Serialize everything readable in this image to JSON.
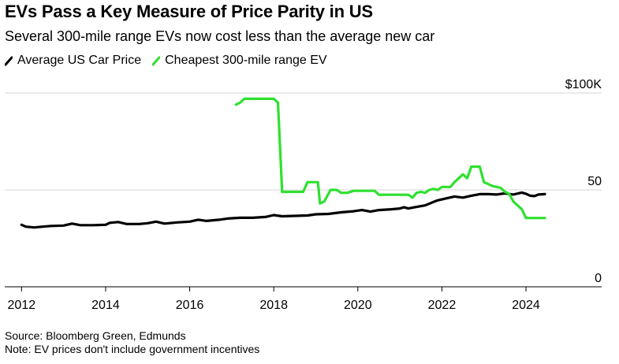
{
  "title": "EVs Pass a Key Measure of Price Parity in US",
  "subtitle": "Several 300-mile range EVs now cost less than the average new car",
  "legend": [
    {
      "label": "Average US Car Price",
      "color": "#000000"
    },
    {
      "label": "Cheapest 300-mile range EV",
      "color": "#2fe02f"
    }
  ],
  "source": "Source: Bloomberg Green, Edmunds",
  "note": "Note: EV prices don't include government incentives",
  "chart_data": {
    "type": "line",
    "title": "EVs Pass a Key Measure of Price Parity in US",
    "xlabel": "",
    "ylabel": "",
    "xlim": [
      2011.6,
      2025.8
    ],
    "ylim": [
      0,
      100
    ],
    "x_ticks": [
      2012,
      2014,
      2016,
      2018,
      2020,
      2022,
      2024
    ],
    "x_tick_labels": [
      "2012",
      "2014",
      "2016",
      "2018",
      "2020",
      "2022",
      "2024"
    ],
    "y_ticks": [
      0,
      50,
      100
    ],
    "y_tick_labels": [
      "0",
      "50",
      "$100K"
    ],
    "grid": "horizontal",
    "legend_position": "top-left",
    "series": [
      {
        "name": "Average US Car Price",
        "color": "#000000",
        "points": [
          [
            2012.0,
            32.0
          ],
          [
            2012.1,
            31.0
          ],
          [
            2012.3,
            30.6
          ],
          [
            2012.5,
            31.0
          ],
          [
            2012.7,
            31.4
          ],
          [
            2013.0,
            31.6
          ],
          [
            2013.2,
            32.6
          ],
          [
            2013.4,
            31.8
          ],
          [
            2013.7,
            31.8
          ],
          [
            2014.0,
            32.0
          ],
          [
            2014.1,
            33.0
          ],
          [
            2014.3,
            33.4
          ],
          [
            2014.5,
            32.4
          ],
          [
            2014.8,
            32.4
          ],
          [
            2015.0,
            32.8
          ],
          [
            2015.2,
            33.6
          ],
          [
            2015.4,
            32.6
          ],
          [
            2015.7,
            33.2
          ],
          [
            2016.0,
            33.6
          ],
          [
            2016.2,
            34.6
          ],
          [
            2016.4,
            34.0
          ],
          [
            2016.7,
            34.6
          ],
          [
            2016.9,
            35.2
          ],
          [
            2017.2,
            35.6
          ],
          [
            2017.5,
            35.6
          ],
          [
            2017.8,
            36.0
          ],
          [
            2018.0,
            37.0
          ],
          [
            2018.2,
            36.4
          ],
          [
            2018.5,
            36.6
          ],
          [
            2018.8,
            36.8
          ],
          [
            2019.0,
            37.4
          ],
          [
            2019.3,
            37.6
          ],
          [
            2019.6,
            38.4
          ],
          [
            2019.9,
            39.0
          ],
          [
            2020.1,
            39.6
          ],
          [
            2020.3,
            38.8
          ],
          [
            2020.5,
            39.6
          ],
          [
            2020.8,
            40.0
          ],
          [
            2021.0,
            40.4
          ],
          [
            2021.1,
            41.0
          ],
          [
            2021.2,
            40.4
          ],
          [
            2021.4,
            41.2
          ],
          [
            2021.6,
            42.0
          ],
          [
            2021.8,
            43.8
          ],
          [
            2021.9,
            44.6
          ],
          [
            2022.1,
            45.6
          ],
          [
            2022.3,
            46.6
          ],
          [
            2022.5,
            46.0
          ],
          [
            2022.7,
            47.0
          ],
          [
            2022.9,
            47.8
          ],
          [
            2023.1,
            47.8
          ],
          [
            2023.3,
            47.6
          ],
          [
            2023.5,
            48.2
          ],
          [
            2023.7,
            47.6
          ],
          [
            2023.9,
            48.6
          ],
          [
            2024.0,
            48.0
          ],
          [
            2024.1,
            47.0
          ],
          [
            2024.2,
            46.8
          ],
          [
            2024.3,
            47.6
          ],
          [
            2024.45,
            47.8
          ]
        ]
      },
      {
        "name": "Cheapest 300-mile range EV",
        "color": "#2fe02f",
        "points": [
          [
            2017.1,
            94.0
          ],
          [
            2017.2,
            95.0
          ],
          [
            2017.3,
            97.0
          ],
          [
            2017.55,
            97.0
          ],
          [
            2018.0,
            97.0
          ],
          [
            2018.1,
            95.0
          ],
          [
            2018.2,
            49.0
          ],
          [
            2018.7,
            49.0
          ],
          [
            2018.8,
            54.0
          ],
          [
            2019.05,
            54.0
          ],
          [
            2019.1,
            43.0
          ],
          [
            2019.2,
            44.0
          ],
          [
            2019.35,
            50.0
          ],
          [
            2019.5,
            50.0
          ],
          [
            2019.6,
            48.5
          ],
          [
            2019.75,
            48.5
          ],
          [
            2019.9,
            49.5
          ],
          [
            2020.4,
            49.5
          ],
          [
            2020.5,
            47.5
          ],
          [
            2021.2,
            47.5
          ],
          [
            2021.3,
            46.0
          ],
          [
            2021.4,
            48.5
          ],
          [
            2021.5,
            49.0
          ],
          [
            2021.6,
            48.5
          ],
          [
            2021.7,
            50.0
          ],
          [
            2021.8,
            50.5
          ],
          [
            2021.9,
            50.0
          ],
          [
            2022.0,
            51.5
          ],
          [
            2022.2,
            51.5
          ],
          [
            2022.3,
            54.0
          ],
          [
            2022.4,
            56.0
          ],
          [
            2022.5,
            58.0
          ],
          [
            2022.6,
            56.0
          ],
          [
            2022.65,
            59.0
          ],
          [
            2022.7,
            62.0
          ],
          [
            2022.9,
            62.0
          ],
          [
            2023.0,
            54.0
          ],
          [
            2023.1,
            53.0
          ],
          [
            2023.2,
            52.0
          ],
          [
            2023.4,
            51.0
          ],
          [
            2023.5,
            49.0
          ],
          [
            2023.6,
            48.0
          ],
          [
            2023.7,
            44.0
          ],
          [
            2023.8,
            42.0
          ],
          [
            2023.9,
            40.0
          ],
          [
            2024.0,
            35.5
          ],
          [
            2024.45,
            35.5
          ]
        ]
      }
    ]
  }
}
